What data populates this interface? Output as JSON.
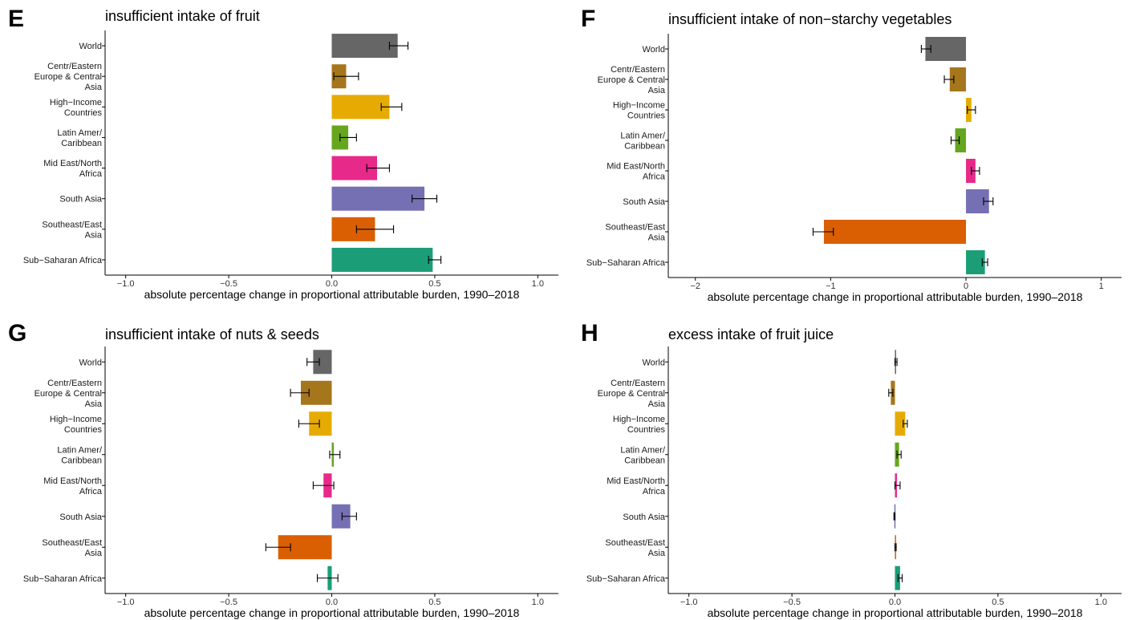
{
  "colors": {
    "World": "#666666",
    "Centr/Eastern Europe & Central Asia": "#A6761D",
    "High-Income Countries": "#E6AB02",
    "Latin Amer/ Caribbean": "#66A61E",
    "Mid East/North Africa": "#E7298A",
    "South Asia": "#7570B3",
    "Southeast/East Asia": "#D95F02",
    "Sub-Saharan Africa": "#1B9E77"
  },
  "chart_data": [
    {
      "type": "bar",
      "orientation": "horizontal",
      "panel": "E",
      "title": "insufficient intake of fruit",
      "xlabel": "absolute percentage change in proportional attributable burden, 1990–2018",
      "xlim": [
        -1.1,
        1.1
      ],
      "xticks": [
        -1.0,
        -0.5,
        0.0,
        0.5,
        1.0
      ],
      "xtick_labels": [
        "−1.0",
        "−0.5",
        "0.0",
        "0.5",
        "1.0"
      ],
      "categories": [
        [
          "World"
        ],
        [
          "Centr/Eastern",
          "Europe & Central",
          "Asia"
        ],
        [
          "High−Income",
          "Countries"
        ],
        [
          "Latin Amer/",
          "Caribbean"
        ],
        [
          "Mid East/North",
          "Africa"
        ],
        [
          "South Asia"
        ],
        [
          "Southeast/East",
          "Asia"
        ],
        [
          "Sub−Saharan Africa"
        ]
      ],
      "values": [
        0.32,
        0.07,
        0.28,
        0.08,
        0.22,
        0.45,
        0.21,
        0.49
      ],
      "error_low": [
        0.28,
        0.01,
        0.24,
        0.04,
        0.17,
        0.39,
        0.12,
        0.47
      ],
      "error_high": [
        0.37,
        0.13,
        0.34,
        0.12,
        0.28,
        0.51,
        0.3,
        0.53
      ]
    },
    {
      "type": "bar",
      "orientation": "horizontal",
      "panel": "F",
      "title": "insufficient intake of non−starchy vegetables",
      "xlabel": "absolute percentage change in proportional attributable burden, 1990–2018",
      "xlim": [
        -2.2,
        1.15
      ],
      "xticks": [
        -2,
        -1,
        0,
        1
      ],
      "xtick_labels": [
        "−2",
        "−1",
        "0",
        "1"
      ],
      "categories": [
        [
          "World"
        ],
        [
          "Centr/Eastern",
          "Europe & Central",
          "Asia"
        ],
        [
          "High−Income",
          "Countries"
        ],
        [
          "Latin Amer/",
          "Caribbean"
        ],
        [
          "Mid East/North",
          "Africa"
        ],
        [
          "South Asia"
        ],
        [
          "Southeast/East",
          "Asia"
        ],
        [
          "Sub−Saharan Africa"
        ]
      ],
      "values": [
        -0.3,
        -0.12,
        0.04,
        -0.08,
        0.07,
        0.17,
        -1.05,
        0.14
      ],
      "error_low": [
        -0.33,
        -0.16,
        0.01,
        -0.11,
        0.04,
        0.13,
        -1.13,
        0.12
      ],
      "error_high": [
        -0.26,
        -0.09,
        0.07,
        -0.05,
        0.1,
        0.2,
        -0.98,
        0.16
      ]
    },
    {
      "type": "bar",
      "orientation": "horizontal",
      "panel": "G",
      "title": "insufficient intake of nuts & seeds",
      "xlabel": "absolute percentage change in proportional attributable burden, 1990–2018",
      "xlim": [
        -1.1,
        1.1
      ],
      "xticks": [
        -1.0,
        -0.5,
        0.0,
        0.5,
        1.0
      ],
      "xtick_labels": [
        "−1.0",
        "−0.5",
        "0.0",
        "0.5",
        "1.0"
      ],
      "categories": [
        [
          "World"
        ],
        [
          "Centr/Eastern",
          "Europe & Central",
          "Asia"
        ],
        [
          "High−Income",
          "Countries"
        ],
        [
          "Latin Amer/",
          "Caribbean"
        ],
        [
          "Mid East/North",
          "Africa"
        ],
        [
          "South Asia"
        ],
        [
          "Southeast/East",
          "Asia"
        ],
        [
          "Sub−Saharan Africa"
        ]
      ],
      "values": [
        -0.09,
        -0.15,
        -0.11,
        0.01,
        -0.04,
        0.09,
        -0.26,
        -0.02
      ],
      "error_low": [
        -0.12,
        -0.2,
        -0.16,
        -0.01,
        -0.09,
        0.05,
        -0.32,
        -0.07
      ],
      "error_high": [
        -0.06,
        -0.11,
        -0.06,
        0.04,
        0.01,
        0.12,
        -0.2,
        0.03
      ]
    },
    {
      "type": "bar",
      "orientation": "horizontal",
      "panel": "H",
      "title": "excess intake of fruit juice",
      "xlabel": "absolute percentage change in proportional attributable burden, 1990–2018",
      "xlim": [
        -1.1,
        1.1
      ],
      "xticks": [
        -1.0,
        -0.5,
        0.0,
        0.5,
        1.0
      ],
      "xtick_labels": [
        "−1.0",
        "−0.5",
        "0.0",
        "0.5",
        "1.0"
      ],
      "categories": [
        [
          "World"
        ],
        [
          "Centr/Eastern",
          "Europe & Central",
          "Asia"
        ],
        [
          "High−Income",
          "Countries"
        ],
        [
          "Latin Amer/",
          "Caribbean"
        ],
        [
          "Mid East/North",
          "Africa"
        ],
        [
          "South Asia"
        ],
        [
          "Southeast/East",
          "Asia"
        ],
        [
          "Sub−Saharan Africa"
        ]
      ],
      "values": [
        0.005,
        -0.02,
        0.05,
        0.02,
        0.01,
        -0.003,
        0.003,
        0.025
      ],
      "error_low": [
        0.0,
        -0.03,
        0.04,
        0.01,
        0.0,
        -0.005,
        0.0,
        0.015
      ],
      "error_high": [
        0.01,
        -0.01,
        0.06,
        0.03,
        0.025,
        0.0,
        0.006,
        0.035
      ]
    }
  ]
}
